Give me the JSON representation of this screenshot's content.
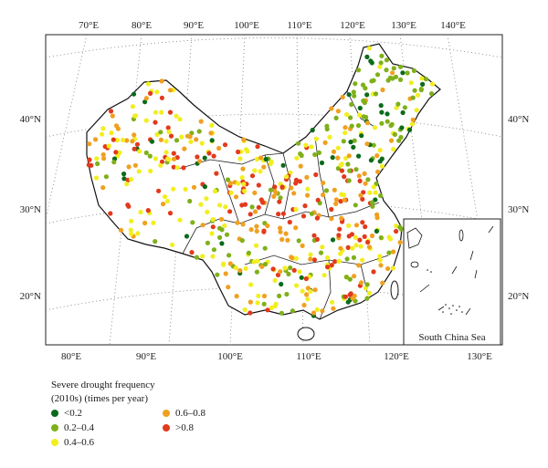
{
  "map": {
    "inset_label": "South China Sea",
    "top_lon_labels": [
      "70°E",
      "80°E",
      "90°E",
      "100°E",
      "110°E",
      "120°E",
      "130°E",
      "140°E"
    ],
    "bottom_lon_labels": [
      "80°E",
      "90°E",
      "100°E",
      "110°E",
      "120°E",
      "130°E"
    ],
    "left_lat_labels": [
      "40°N",
      "30°N",
      "20°N"
    ],
    "right_lat_labels": [
      "40°N",
      "30°N",
      "20°N"
    ]
  },
  "legend": {
    "title_line1": "Severe drought frequency",
    "title_line2": "(2010s) (times per year)",
    "items": [
      {
        "label": "<0.2",
        "color": "#0b6b1a"
      },
      {
        "label": "0.2–0.4",
        "color": "#7fb01a"
      },
      {
        "label": "0.4–0.6",
        "color": "#f2ee20"
      },
      {
        "label": "0.6–0.8",
        "color": "#f0a020"
      },
      {
        "label": ">0.8",
        "color": "#e23a1c"
      }
    ]
  }
}
